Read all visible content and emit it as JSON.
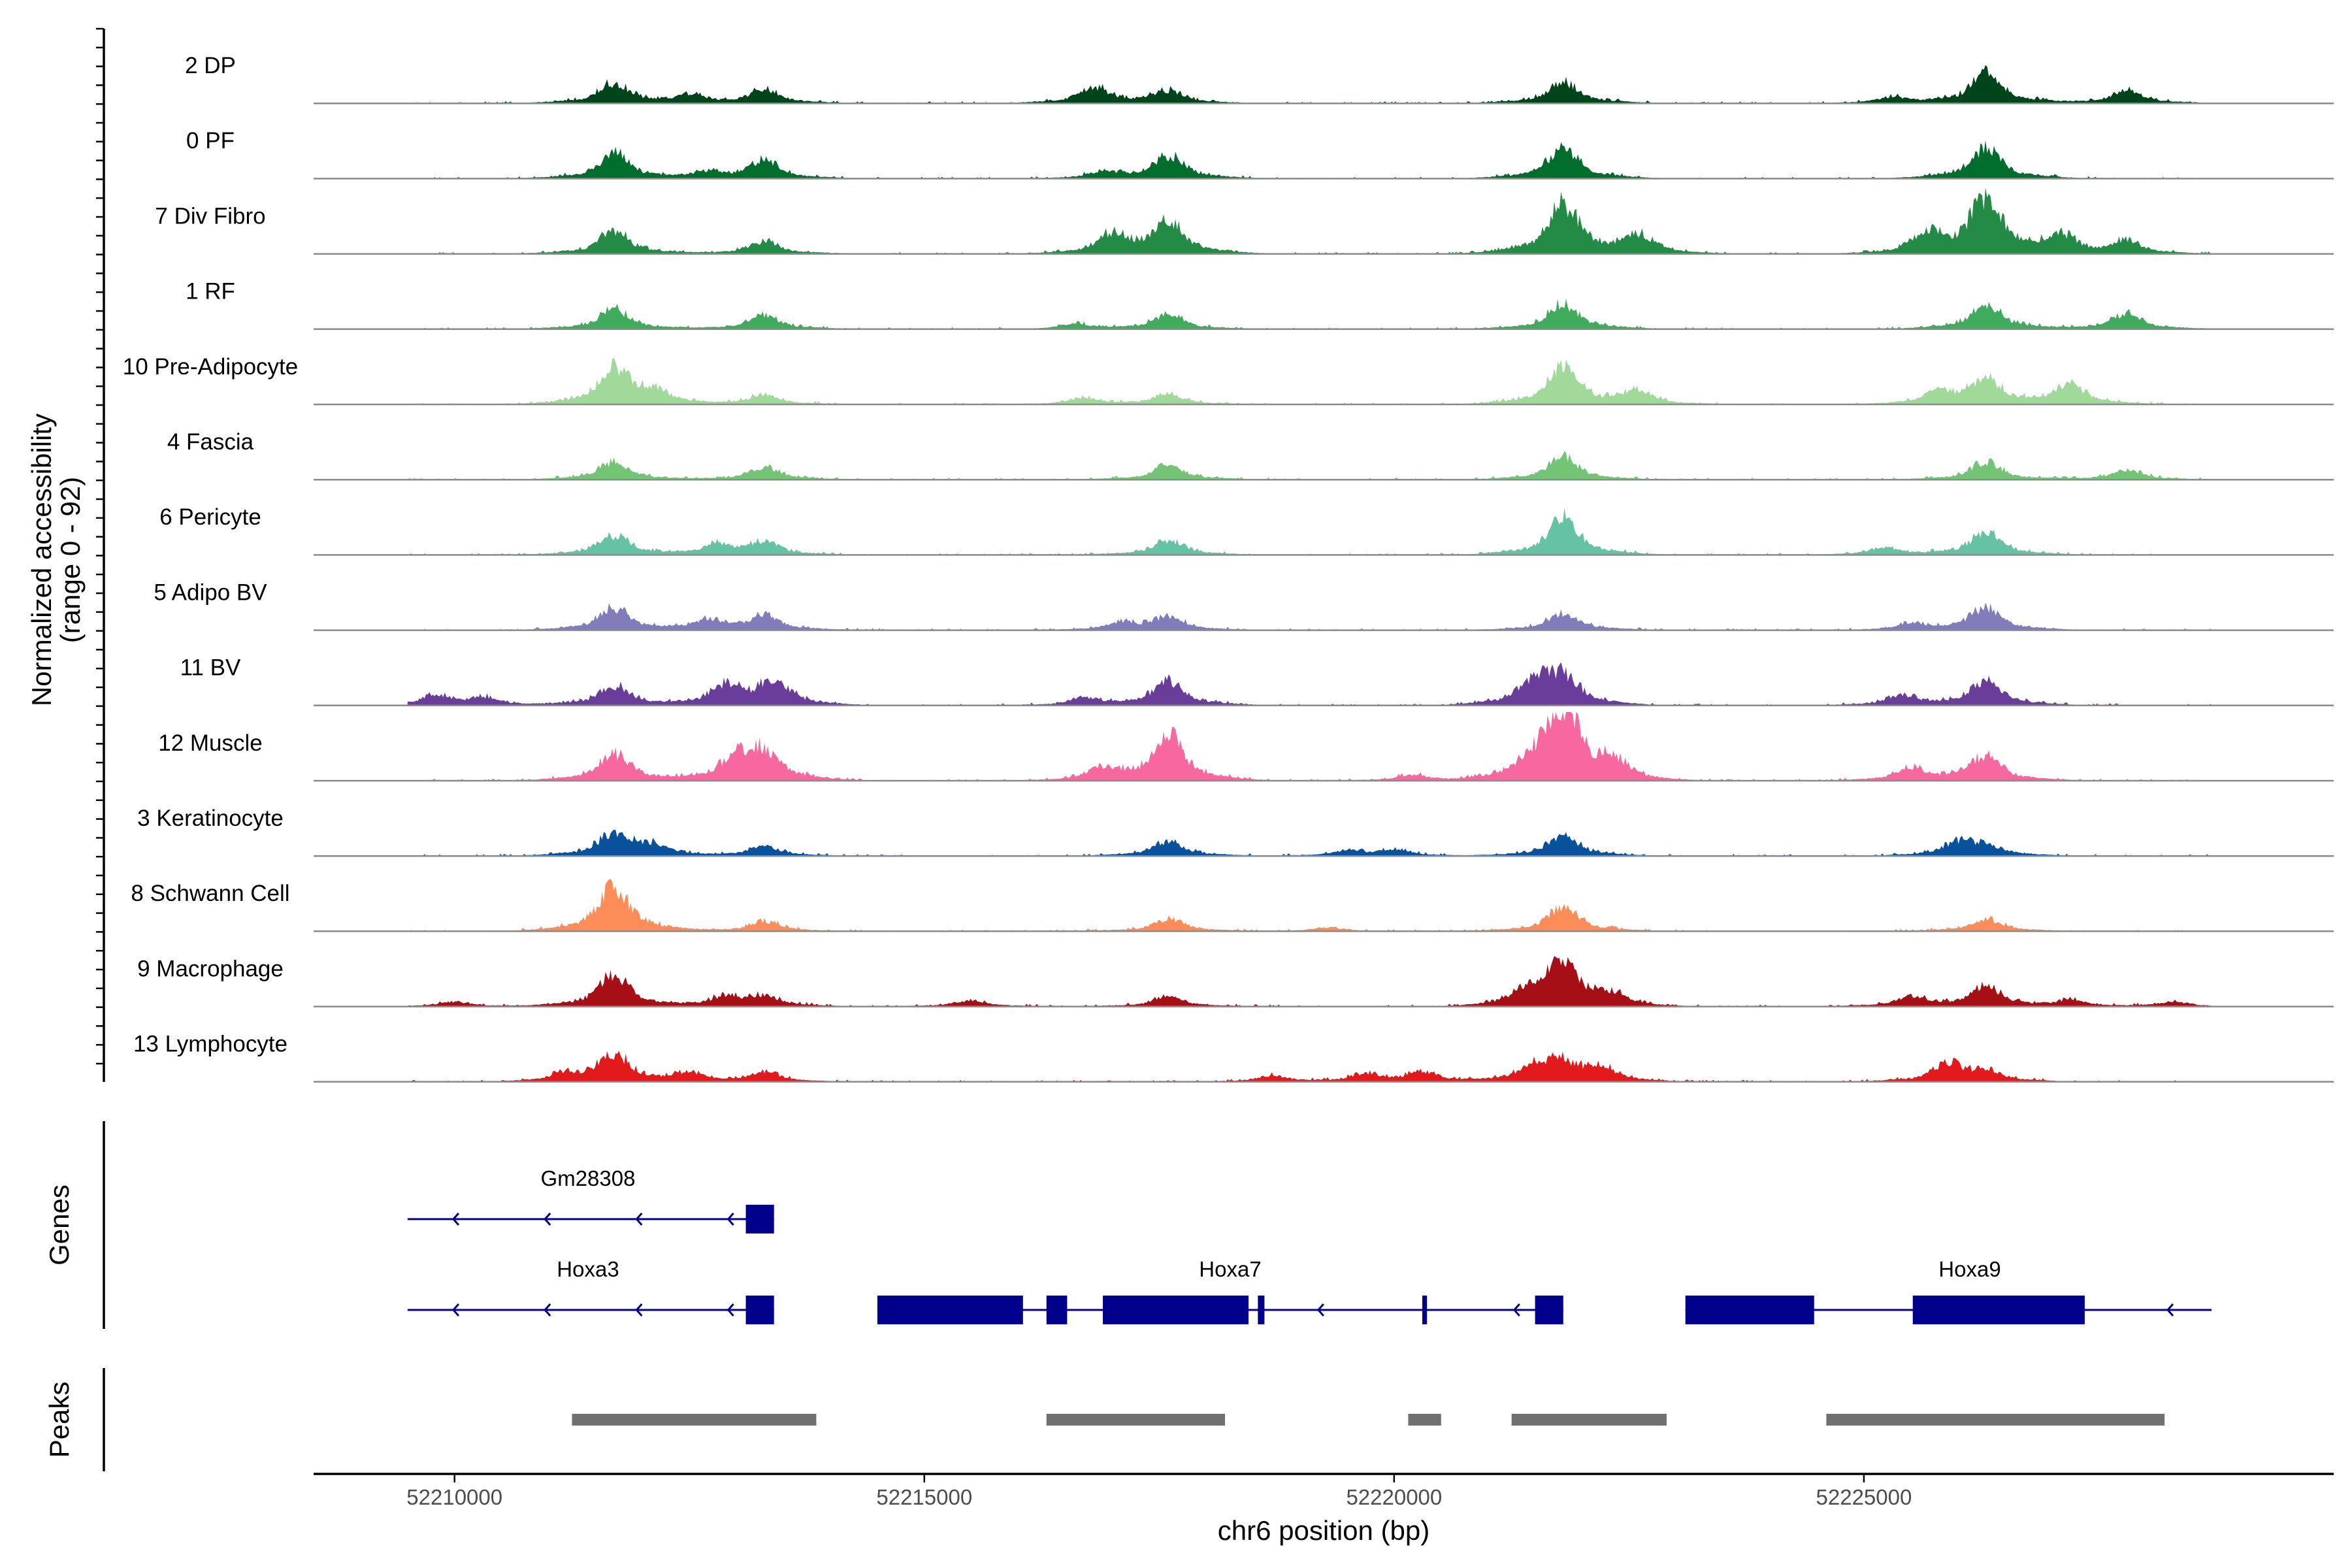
{
  "chart_data": {
    "type": "area",
    "title": "",
    "chromosome": "chr6",
    "xlabel": "chr6 position (bp)",
    "ylabel_line1": "Normalized accessibility",
    "ylabel_line2": "(range 0 - 92)",
    "ylim": [
      0,
      92
    ],
    "xlim": [
      52208500,
      52230000
    ],
    "x_ticks": [
      52210000,
      52215000,
      52220000,
      52225000
    ],
    "x_tick_labels": [
      "52210000",
      "52215000",
      "52220000",
      "52225000"
    ],
    "region_start": 52209500,
    "region_end": 52228700,
    "tracks": [
      {
        "name": "2 DP",
        "color": "#00441b",
        "peaks": [
          [
            52211700,
            16
          ],
          [
            52213300,
            11
          ],
          [
            52216800,
            13
          ],
          [
            52217600,
            10
          ],
          [
            52221800,
            17
          ],
          [
            52226300,
            24
          ],
          [
            52227800,
            11
          ],
          [
            52212500,
            6
          ],
          [
            52225300,
            5
          ]
        ]
      },
      {
        "name": "0 PF",
        "color": "#006d2c",
        "peaks": [
          [
            52211700,
            20
          ],
          [
            52213300,
            14
          ],
          [
            52217600,
            18
          ],
          [
            52221800,
            24
          ],
          [
            52226300,
            25
          ],
          [
            52212700,
            5
          ],
          [
            52216900,
            5
          ]
        ]
      },
      {
        "name": "7 Div Fibro",
        "color": "#238b45",
        "peaks": [
          [
            52211700,
            18
          ],
          [
            52213300,
            10
          ],
          [
            52217000,
            15
          ],
          [
            52217600,
            26
          ],
          [
            52221800,
            40
          ],
          [
            52222600,
            15
          ],
          [
            52226300,
            45
          ],
          [
            52227100,
            14
          ],
          [
            52227800,
            10
          ],
          [
            52225700,
            16
          ]
        ]
      },
      {
        "name": "1 RF",
        "color": "#41ab5d",
        "peaks": [
          [
            52211700,
            16
          ],
          [
            52213300,
            11
          ],
          [
            52217600,
            12
          ],
          [
            52221800,
            20
          ],
          [
            52226300,
            20
          ],
          [
            52227800,
            12
          ],
          [
            52216600,
            4
          ]
        ]
      },
      {
        "name": "10 Pre-Adipocyte",
        "color": "#a1d99b",
        "peaks": [
          [
            52211700,
            28
          ],
          [
            52212100,
            10
          ],
          [
            52213300,
            8
          ],
          [
            52216700,
            5
          ],
          [
            52217600,
            8
          ],
          [
            52221800,
            30
          ],
          [
            52222600,
            10
          ],
          [
            52226300,
            20
          ],
          [
            52227200,
            16
          ],
          [
            52225800,
            10
          ]
        ]
      },
      {
        "name": "4 Fascia",
        "color": "#74c476",
        "peaks": [
          [
            52211700,
            14
          ],
          [
            52213300,
            10
          ],
          [
            52217600,
            12
          ],
          [
            52221800,
            18
          ],
          [
            52226300,
            14
          ],
          [
            52227800,
            8
          ]
        ]
      },
      {
        "name": "6 Pericyte",
        "color": "#66c2a4",
        "peaks": [
          [
            52211700,
            16
          ],
          [
            52212800,
            8
          ],
          [
            52213300,
            10
          ],
          [
            52217600,
            12
          ],
          [
            52221800,
            30
          ],
          [
            52226300,
            18
          ],
          [
            52225200,
            6
          ]
        ]
      },
      {
        "name": "5 Adipo BV",
        "color": "#807dba",
        "peaks": [
          [
            52211700,
            18
          ],
          [
            52213300,
            12
          ],
          [
            52212700,
            8
          ],
          [
            52217600,
            10
          ],
          [
            52221800,
            14
          ],
          [
            52226300,
            18
          ],
          [
            52217100,
            6
          ],
          [
            52225500,
            5
          ]
        ]
      },
      {
        "name": "11 BV",
        "color": "#6a3d9a",
        "peaks": [
          [
            52209800,
            8
          ],
          [
            52211700,
            16
          ],
          [
            52212900,
            16
          ],
          [
            52213400,
            20
          ],
          [
            52217600,
            20
          ],
          [
            52221500,
            18
          ],
          [
            52221800,
            22
          ],
          [
            52226300,
            20
          ],
          [
            52225400,
            8
          ],
          [
            52216700,
            6
          ],
          [
            52210300,
            6
          ]
        ]
      },
      {
        "name": "12 Muscle",
        "color": "#f768a1",
        "peaks": [
          [
            52211700,
            22
          ],
          [
            52213000,
            18
          ],
          [
            52213300,
            22
          ],
          [
            52217600,
            36
          ],
          [
            52216900,
            10
          ],
          [
            52221800,
            58
          ],
          [
            52221500,
            14
          ],
          [
            52222300,
            14
          ],
          [
            52226300,
            20
          ],
          [
            52225500,
            10
          ],
          [
            52220200,
            5
          ]
        ]
      },
      {
        "name": "3 Keratinocyte",
        "color": "#08519c",
        "peaks": [
          [
            52211700,
            18
          ],
          [
            52212100,
            8
          ],
          [
            52213300,
            8
          ],
          [
            52217600,
            12
          ],
          [
            52221800,
            16
          ],
          [
            52226000,
            10
          ],
          [
            52226300,
            8
          ],
          [
            52220000,
            5
          ],
          [
            52219500,
            4
          ]
        ]
      },
      {
        "name": "8 Schwann Cell",
        "color": "#fc8d59",
        "peaks": [
          [
            52211700,
            36
          ],
          [
            52213300,
            8
          ],
          [
            52217600,
            10
          ],
          [
            52221800,
            20
          ],
          [
            52226300,
            10
          ],
          [
            52219300,
            3
          ]
        ]
      },
      {
        "name": "9 Macrophage",
        "color": "#a50f15",
        "peaks": [
          [
            52211700,
            26
          ],
          [
            52212900,
            8
          ],
          [
            52213300,
            8
          ],
          [
            52217600,
            8
          ],
          [
            52221800,
            36
          ],
          [
            52221400,
            10
          ],
          [
            52222300,
            8
          ],
          [
            52226300,
            16
          ],
          [
            52225500,
            8
          ],
          [
            52227200,
            5
          ],
          [
            52228300,
            4
          ],
          [
            52215500,
            5
          ],
          [
            52210000,
            4
          ]
        ]
      },
      {
        "name": "13 Lymphocyte",
        "color": "#e31a1c",
        "peaks": [
          [
            52211700,
            22
          ],
          [
            52211200,
            6
          ],
          [
            52212500,
            6
          ],
          [
            52213300,
            8
          ],
          [
            52221500,
            12
          ],
          [
            52221800,
            14
          ],
          [
            52222200,
            10
          ],
          [
            52225900,
            14
          ],
          [
            52226300,
            8
          ],
          [
            52220300,
            8
          ],
          [
            52219700,
            6
          ],
          [
            52218700,
            5
          ]
        ]
      }
    ],
    "genes_panel_label": "Genes",
    "genes": [
      {
        "name": "Gm28308",
        "strand": "-",
        "start": 52209500,
        "end": 52213400,
        "exons": [
          [
            52213100,
            52213400
          ]
        ]
      },
      {
        "name": "Hoxa3",
        "strand": "-",
        "start": 52209500,
        "end": 52213400,
        "exons": [
          [
            52213100,
            52213400
          ]
        ]
      },
      {
        "name": "Hoxa7",
        "strand": "-",
        "start": 52214500,
        "end": 52221800,
        "exons": [
          [
            52214500,
            52216050
          ],
          [
            52216300,
            52216520
          ],
          [
            52216900,
            52218450
          ],
          [
            52218550,
            52218620
          ],
          [
            52220300,
            52220350
          ],
          [
            52221500,
            52221800
          ]
        ]
      },
      {
        "name": "Hoxa9",
        "strand": "-",
        "start": 52223100,
        "end": 52228700,
        "exons": [
          [
            52223100,
            52224470
          ],
          [
            52225520,
            52227350
          ]
        ]
      }
    ],
    "peaks_panel_label": "Peaks",
    "peak_regions": [
      [
        52211250,
        52213850
      ],
      [
        52216300,
        52218200
      ],
      [
        52220150,
        52220500
      ],
      [
        52221250,
        52222900
      ],
      [
        52224600,
        52228200
      ]
    ]
  }
}
